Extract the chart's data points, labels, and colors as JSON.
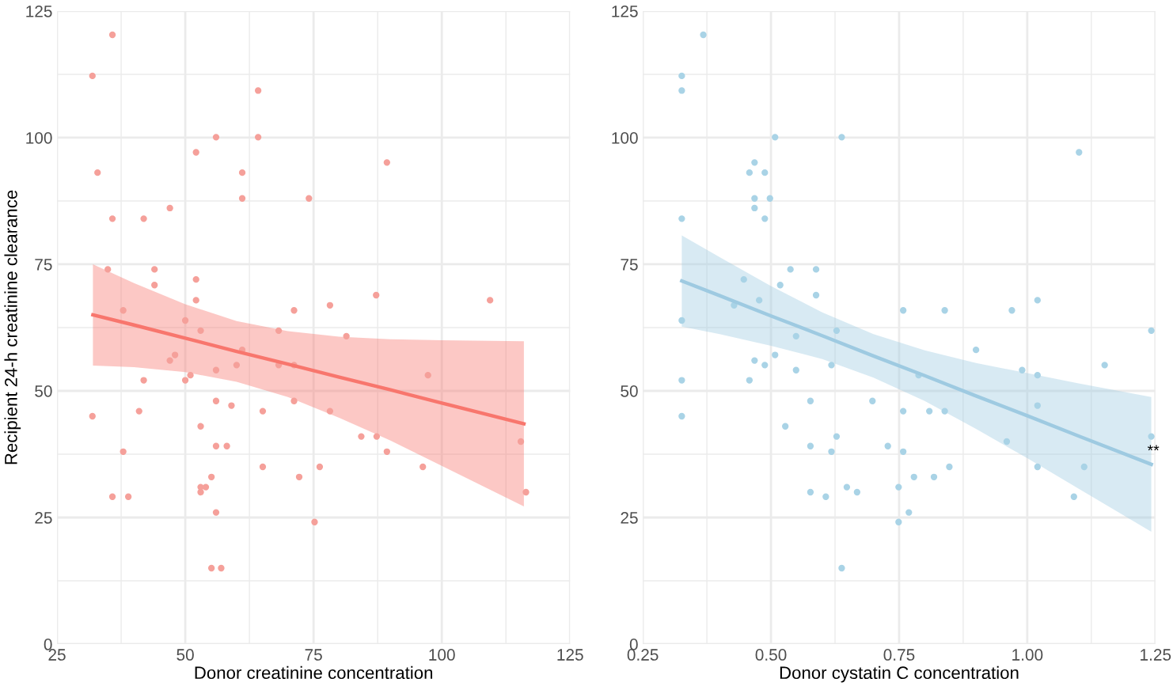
{
  "chart_data": [
    {
      "type": "scatter",
      "xlabel": "Donor creatinine concentration",
      "ylabel": "Recipient 24-h creatinine clearance",
      "xlim": [
        25,
        125
      ],
      "ylim": [
        0,
        125
      ],
      "xticks": [
        25,
        {
          "value": 37.5,
          "label": null
        },
        50,
        {
          "value": 62.5,
          "label": null
        },
        75,
        {
          "value": 87.5,
          "label": null
        },
        100,
        {
          "value": 112.5,
          "label": null
        },
        125
      ],
      "yticks": [
        0,
        {
          "value": 12.5,
          "label": null
        },
        25,
        {
          "value": 37.5,
          "label": null
        },
        50,
        {
          "value": 62.5,
          "label": null
        },
        75,
        {
          "value": 87.5,
          "label": null
        },
        100,
        {
          "value": 112.5,
          "label": null
        },
        125
      ],
      "grid": true,
      "marker": "circle",
      "series": [
        {
          "color": "#f5a09a",
          "x": [
            31.9,
            35.8,
            32.9,
            64.2,
            52.1,
            56.0,
            64.2,
            61.1,
            61.1,
            89.3,
            74.1,
            35.8,
            41.9,
            47.0,
            34.9,
            44.0,
            44.0,
            52.1,
            52.1,
            37.9,
            50.0,
            53.0,
            68.2,
            71.2,
            78.2,
            87.2,
            109.4,
            81.4,
            47.0,
            48.0,
            61.1,
            60.0,
            50.0,
            51.0,
            41.9,
            56.0,
            68.2,
            71.2,
            71.2,
            56.0,
            59.0,
            65.1,
            78.2,
            97.3,
            41.0,
            31.9,
            53.0,
            84.3,
            87.3,
            115.4,
            56.0,
            58.1,
            37.9,
            89.3,
            65.1,
            76.2,
            96.3,
            55.1,
            72.2,
            53.0,
            54.0,
            53.0,
            116.4,
            35.8,
            38.9,
            56.0,
            75.2,
            55.1,
            57.0
          ],
          "values": [
            112.2,
            120.3,
            93.1,
            109.3,
            97.1,
            100.1,
            100.1,
            93.1,
            88.0,
            95.1,
            88.0,
            84.0,
            84.0,
            86.1,
            74.0,
            74.0,
            70.9,
            72.0,
            67.9,
            65.9,
            63.9,
            61.9,
            61.9,
            65.9,
            66.9,
            68.9,
            67.9,
            60.8,
            56.0,
            57.1,
            58.1,
            55.1,
            52.1,
            53.1,
            52.1,
            54.1,
            55.1,
            55.1,
            48.0,
            48.0,
            47.1,
            46.0,
            46.0,
            53.1,
            46.0,
            45.0,
            43.0,
            41.0,
            41.0,
            40.0,
            39.1,
            39.1,
            38.0,
            38.0,
            35.0,
            35.0,
            35.0,
            33.0,
            33.0,
            31.0,
            31.0,
            30.0,
            30.0,
            29.1,
            29.1,
            26.0,
            24.1,
            15.0,
            15.0
          ]
        },
        {
          "type": "line",
          "marker": "none",
          "color": "#f8766d",
          "x": [
            32,
            40,
            50,
            60,
            70,
            80,
            90,
            100,
            116
          ],
          "values": [
            65.0,
            63.0,
            60.4,
            57.8,
            55.3,
            52.7,
            50.2,
            47.6,
            43.5
          ],
          "lower": [
            55.0,
            54.7,
            53.7,
            51.8,
            48.8,
            44.7,
            40.2,
            35.2,
            27.2
          ],
          "upper": [
            75.0,
            71.3,
            67.1,
            63.8,
            61.8,
            60.7,
            60.2,
            60.0,
            59.8
          ]
        }
      ]
    },
    {
      "type": "scatter",
      "xlabel": "Donor cystatin C concentration",
      "xlim": [
        0.25,
        1.25
      ],
      "ylim": [
        0,
        125
      ],
      "xticks": [
        {
          "value": 0.25,
          "label": "0.25"
        },
        {
          "value": 0.375,
          "label": null
        },
        {
          "value": 0.5,
          "label": "0.50"
        },
        {
          "value": 0.625,
          "label": null
        },
        {
          "value": 0.75,
          "label": "0.75"
        },
        {
          "value": 0.875,
          "label": null
        },
        {
          "value": 1.0,
          "label": "1.00"
        },
        {
          "value": 1.125,
          "label": null
        },
        {
          "value": 1.25,
          "label": "1.25"
        }
      ],
      "yticks": [
        0,
        {
          "value": 12.5,
          "label": null
        },
        25,
        {
          "value": 37.5,
          "label": null
        },
        50,
        {
          "value": 62.5,
          "label": null
        },
        75,
        {
          "value": 87.5,
          "label": null
        },
        100,
        {
          "value": 112.5,
          "label": null
        },
        125
      ],
      "grid": true,
      "marker": "circle",
      "annotations": [
        {
          "text": "**",
          "x": 1.246,
          "y": 38
        }
      ],
      "series": [
        {
          "color": "#a9d3e6",
          "x": [
            0.326,
            0.326,
            0.368,
            0.508,
            0.638,
            1.101,
            0.468,
            0.458,
            0.488,
            0.468,
            0.498,
            0.468,
            0.488,
            0.326,
            0.538,
            0.588,
            0.447,
            0.518,
            0.588,
            0.477,
            0.428,
            0.758,
            0.839,
            0.97,
            1.02,
            0.326,
            0.628,
            1.242,
            0.549,
            0.9,
            0.468,
            0.508,
            0.488,
            0.618,
            1.151,
            0.549,
            0.458,
            0.326,
            0.99,
            1.02,
            0.788,
            0.698,
            0.577,
            1.02,
            0.758,
            0.809,
            0.839,
            0.326,
            0.528,
            0.628,
            1.242,
            0.96,
            0.577,
            0.728,
            0.618,
            0.758,
            0.848,
            1.02,
            1.111,
            0.779,
            0.818,
            0.648,
            0.749,
            0.577,
            0.668,
            0.607,
            1.091,
            0.769,
            0.749,
            0.638
          ],
          "values": [
            112.2,
            109.3,
            120.3,
            100.1,
            100.1,
            97.1,
            95.1,
            93.1,
            93.1,
            88.0,
            88.0,
            86.1,
            84.0,
            84.0,
            74.0,
            74.0,
            72.0,
            70.9,
            68.9,
            67.9,
            66.9,
            65.9,
            65.9,
            65.9,
            67.9,
            63.9,
            61.9,
            61.9,
            60.8,
            58.1,
            56.0,
            57.1,
            55.1,
            55.1,
            55.1,
            54.1,
            52.1,
            52.1,
            54.1,
            53.1,
            53.1,
            48.0,
            48.0,
            47.1,
            46.0,
            46.0,
            46.0,
            45.0,
            43.0,
            41.0,
            41.0,
            40.0,
            39.1,
            39.1,
            38.0,
            38.0,
            35.0,
            35.0,
            35.0,
            33.0,
            33.0,
            31.0,
            31.0,
            30.0,
            30.0,
            29.1,
            29.1,
            26.0,
            24.1,
            15.0
          ]
        },
        {
          "type": "line",
          "marker": "none",
          "color": "#9ecae1",
          "x": [
            0.326,
            0.4,
            0.5,
            0.6,
            0.7,
            0.8,
            0.9,
            1.0,
            1.1,
            1.242
          ],
          "values": [
            71.7,
            68.8,
            64.8,
            60.9,
            56.9,
            53.0,
            49.0,
            45.1,
            41.1,
            35.5
          ],
          "lower": [
            62.7,
            61.2,
            58.9,
            56.3,
            52.6,
            48.0,
            42.5,
            36.7,
            30.7,
            22.2
          ],
          "upper": [
            80.7,
            76.4,
            70.7,
            65.5,
            61.2,
            58.0,
            55.5,
            53.5,
            51.5,
            48.8
          ]
        }
      ]
    }
  ]
}
